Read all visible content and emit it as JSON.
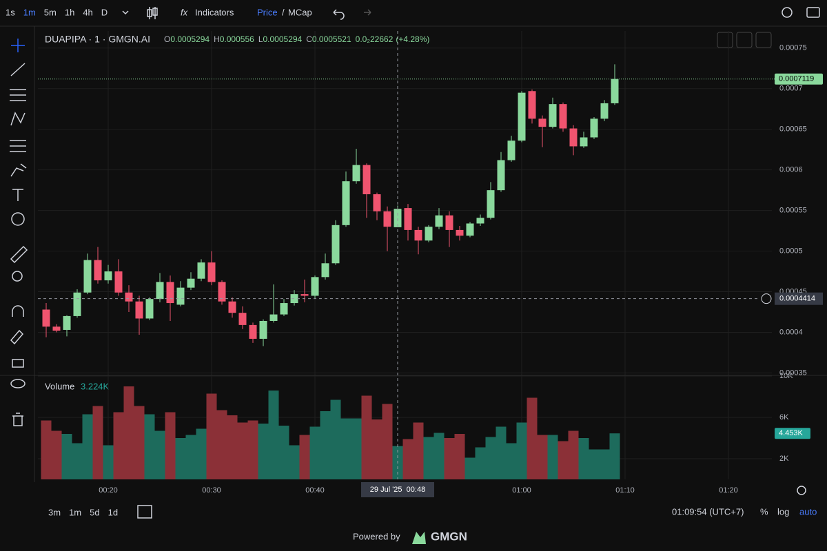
{
  "toolbar": {
    "intervals": [
      "1s",
      "1m",
      "5m",
      "1h",
      "4h",
      "D"
    ],
    "active_interval": 1,
    "indicators": "Indicators",
    "price": "Price",
    "separator": "/",
    "mcap": "MCap"
  },
  "legend": {
    "symbol": "DUAPIPA · 1 · GMGN.AI",
    "keys": [
      "O",
      "H",
      "L",
      "C"
    ],
    "change": "0.0₂22662",
    "change_pct": "(+4.28%)",
    "volume_title": "Volume",
    "volume_value": "3.224K"
  },
  "chart_data": {
    "type": "candlestick",
    "x": [
      "00:14",
      "00:15",
      "00:16",
      "00:17",
      "00:18",
      "00:19",
      "00:20",
      "00:21",
      "00:22",
      "00:23",
      "00:24",
      "00:25",
      "00:26",
      "00:27",
      "00:28",
      "00:29",
      "00:30",
      "00:31",
      "00:32",
      "00:33",
      "00:34",
      "00:35",
      "00:36",
      "00:37",
      "00:38",
      "00:39",
      "00:40",
      "00:41",
      "00:42",
      "00:43",
      "00:44",
      "00:45",
      "00:46",
      "00:47",
      "00:48",
      "00:49",
      "00:50",
      "00:51",
      "00:52",
      "00:53",
      "00:54",
      "00:55",
      "00:56",
      "00:57",
      "00:58",
      "00:59",
      "01:00",
      "01:01",
      "01:02",
      "01:03",
      "01:04",
      "01:05",
      "01:06",
      "01:07",
      "01:08",
      "01:09"
    ],
    "open": [
      0.000428,
      0.000407,
      0.000403,
      0.00042,
      0.000449,
      0.000489,
      0.000464,
      0.000475,
      0.000449,
      0.000438,
      0.000417,
      0.000441,
      0.000462,
      0.000434,
      0.000455,
      0.000466,
      0.000486,
      0.000462,
      0.000438,
      0.000424,
      0.000409,
      0.000392,
      0.000414,
      0.000422,
      0.000436,
      0.000447,
      0.000445,
      0.000468,
      0.000485,
      0.000532,
      0.000586,
      0.000606,
      0.00057,
      0.000549,
      0.0005294,
      0.000553,
      0.000526,
      0.000513,
      0.00053,
      0.000544,
      0.000526,
      0.000519,
      0.000534,
      0.000541,
      0.000575,
      0.000612,
      0.000636,
      0.000697,
      0.000663,
      0.000653,
      0.000681,
      0.000651,
      0.000629,
      0.00064,
      0.000663,
      0.000682
    ],
    "high": [
      0.000436,
      0.00041,
      0.000421,
      0.000453,
      0.000497,
      0.000505,
      0.000483,
      0.00049,
      0.000458,
      0.000445,
      0.000443,
      0.000473,
      0.00047,
      0.000463,
      0.000474,
      0.00049,
      0.0005,
      0.000464,
      0.000443,
      0.000432,
      0.000412,
      0.000416,
      0.000459,
      0.000441,
      0.000452,
      0.000465,
      0.00047,
      0.000497,
      0.000538,
      0.000598,
      0.000626,
      0.000608,
      0.000572,
      0.000555,
      0.000556,
      0.000558,
      0.00053,
      0.000532,
      0.000553,
      0.000549,
      0.000531,
      0.000536,
      0.000545,
      0.000585,
      0.000622,
      0.000642,
      0.000697,
      0.000699,
      0.000667,
      0.000689,
      0.000683,
      0.000655,
      0.000647,
      0.000665,
      0.000686,
      0.00073
    ],
    "low": [
      0.000394,
      0.0004,
      0.000395,
      0.000418,
      0.000447,
      0.00046,
      0.00046,
      0.000445,
      0.000425,
      0.000397,
      0.000415,
      0.000437,
      0.000414,
      0.000432,
      0.000452,
      0.000463,
      0.000458,
      0.000434,
      0.000418,
      0.000404,
      0.000387,
      0.000383,
      0.000412,
      0.00042,
      0.000433,
      0.000437,
      0.000442,
      0.000465,
      0.000483,
      0.00053,
      0.000583,
      0.000541,
      0.000538,
      0.0005,
      0.0005294,
      0.000513,
      0.000496,
      0.000511,
      0.000527,
      0.000505,
      0.000513,
      0.000517,
      0.000531,
      0.000539,
      0.000573,
      0.00061,
      0.000634,
      0.000657,
      0.000628,
      0.000651,
      0.000647,
      0.000618,
      0.000627,
      0.000638,
      0.00066,
      0.00068
    ],
    "close": [
      0.000407,
      0.000402,
      0.00042,
      0.000449,
      0.000489,
      0.000464,
      0.000475,
      0.000449,
      0.000438,
      0.000417,
      0.000441,
      0.000462,
      0.000436,
      0.000455,
      0.000466,
      0.000486,
      0.000462,
      0.000438,
      0.000424,
      0.000409,
      0.000392,
      0.000414,
      0.000422,
      0.000436,
      0.000447,
      0.000445,
      0.000468,
      0.000485,
      0.000532,
      0.000586,
      0.000606,
      0.00057,
      0.000549,
      0.00053,
      0.0005521,
      0.000526,
      0.000513,
      0.00053,
      0.000544,
      0.000526,
      0.000519,
      0.000534,
      0.000541,
      0.000575,
      0.000612,
      0.000636,
      0.000695,
      0.000663,
      0.000653,
      0.000681,
      0.000651,
      0.000629,
      0.00064,
      0.000663,
      0.000682,
      0.0007119
    ],
    "volume": [
      5700,
      4700,
      4400,
      3500,
      6300,
      7100,
      3300,
      6500,
      9000,
      7100,
      6300,
      4700,
      6500,
      4000,
      4300,
      4900,
      8300,
      6700,
      6200,
      5500,
      5700,
      5400,
      8600,
      5200,
      3300,
      4300,
      5100,
      6600,
      7700,
      5900,
      5900,
      8100,
      5800,
      7300,
      3224,
      3900,
      5500,
      4100,
      4500,
      4000,
      4400,
      2100,
      3100,
      4100,
      5100,
      3500,
      5500,
      7900,
      4300,
      4300,
      3700,
      4700,
      4000,
      2900,
      2900,
      4453
    ],
    "volume_last_label": "4.453K",
    "up_color": "#8ad89c",
    "down_color": "#f0546f",
    "up_volume_color": "#1d6b5c",
    "down_volume_color": "#8b3037",
    "ylim": [
      0.000347,
      0.000771
    ],
    "yticks": [
      0.00075,
      0.0007,
      0.00065,
      0.0006,
      0.00055,
      0.0005,
      0.00045,
      0.0004,
      0.00035
    ],
    "volume_lim": [
      0,
      10000
    ],
    "volume_ticks": [
      {
        "value": 10000,
        "label": "10K"
      },
      {
        "value": 6000,
        "label": "6K"
      },
      {
        "value": 2000,
        "label": "2K"
      }
    ],
    "xticks": [
      "00:20",
      "00:30",
      "00:40",
      "01:00",
      "01:10",
      "01:20"
    ],
    "grid": true,
    "crosshair": {
      "price": 0.0004414,
      "time": "29 Jul '25  00:48"
    }
  },
  "bottom": {
    "ranges": [
      "3m",
      "1m",
      "5d",
      "1d"
    ],
    "clock": "01:09:54 (UTC+7)",
    "percent": "%",
    "log": "log",
    "auto": "auto",
    "powered": "Powered by",
    "brand": "GMGN"
  }
}
